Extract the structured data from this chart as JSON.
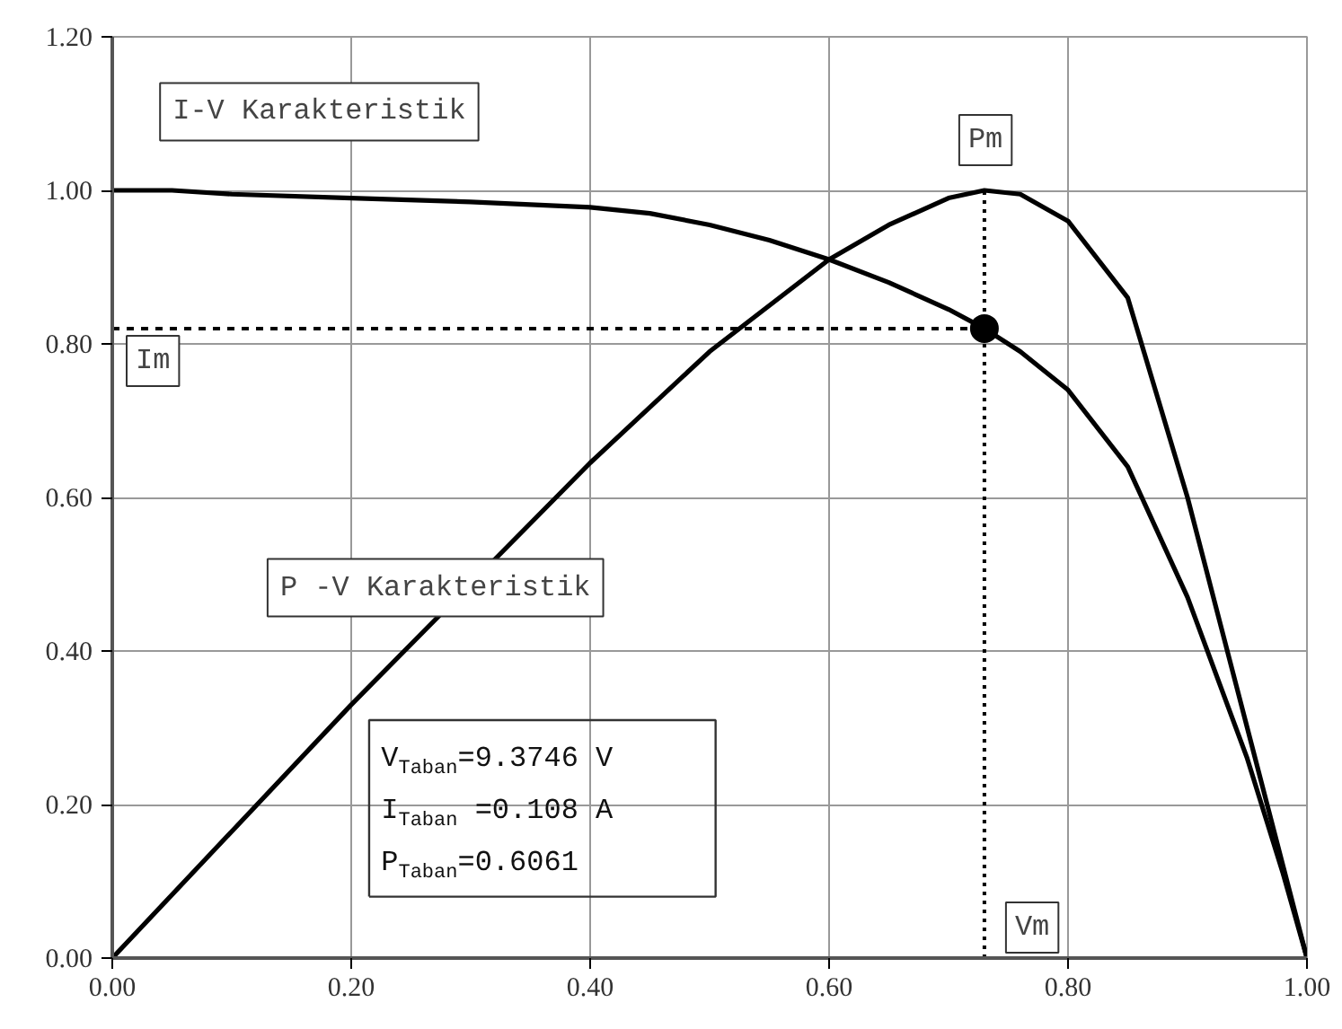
{
  "chart_data": {
    "type": "line",
    "xlim": [
      0,
      1.0
    ],
    "ylim": [
      0,
      1.2
    ],
    "xticks": [
      {
        "value": 0,
        "label": "0.00"
      },
      {
        "value": 0.2,
        "label": "0.20"
      },
      {
        "value": 0.4,
        "label": "0.40"
      },
      {
        "value": 0.6,
        "label": "0.60"
      },
      {
        "value": 0.8,
        "label": "0.80"
      },
      {
        "value": 1.0,
        "label": "1.00"
      }
    ],
    "yticks": [
      {
        "value": 0,
        "label": "0.00"
      },
      {
        "value": 0.2,
        "label": "0.20"
      },
      {
        "value": 0.4,
        "label": "0.40"
      },
      {
        "value": 0.6,
        "label": "0.60"
      },
      {
        "value": 0.8,
        "label": "0.80"
      },
      {
        "value": 1.0,
        "label": "1.00"
      },
      {
        "value": 1.2,
        "label": "1.20"
      }
    ],
    "grid": true,
    "marker": "none",
    "line_style": "solid",
    "series": [
      {
        "color": "#000000",
        "x": [
          0,
          0.05,
          0.1,
          0.2,
          0.3,
          0.4,
          0.45,
          0.5,
          0.55,
          0.6,
          0.65,
          0.7,
          0.73,
          0.76,
          0.8,
          0.85,
          0.9,
          0.95,
          0.98,
          1.0
        ],
        "values": [
          1.0,
          1.0,
          0.995,
          0.99,
          0.985,
          0.978,
          0.97,
          0.955,
          0.935,
          0.91,
          0.88,
          0.845,
          0.82,
          0.79,
          0.74,
          0.64,
          0.47,
          0.26,
          0.11,
          0.0
        ]
      },
      {
        "color": "#000000",
        "x": [
          0,
          0.1,
          0.2,
          0.4,
          0.5,
          0.6,
          0.65,
          0.7,
          0.73,
          0.76,
          0.8,
          0.85,
          0.9,
          0.95,
          0.98,
          1.0
        ],
        "values": [
          0,
          0.165,
          0.33,
          0.645,
          0.79,
          0.91,
          0.955,
          0.99,
          1.0,
          0.995,
          0.96,
          0.86,
          0.6,
          0.3,
          0.12,
          0.0
        ]
      },
      {
        "type": "scatter",
        "marker": "circle",
        "color": "#000000",
        "x": [
          0.73
        ],
        "values": [
          0.82
        ]
      }
    ],
    "ref_lines": [
      {
        "axis": "y",
        "value": 0.82,
        "label": "Im",
        "line_style": "dashed"
      },
      {
        "axis": "x",
        "value": 0.73,
        "label": "Vm",
        "line_style": "dotted"
      }
    ],
    "annotations": [
      "I-V Karakteristik",
      "P -V Karakteristik",
      "V$_{Taban}$=9.3746 V",
      "I$_{Taban}$ =0.108 A",
      "P$_{Taban}$=0.6061",
      {
        "text": "Pm",
        "x": 0.73,
        "y": 1.0
      }
    ]
  }
}
